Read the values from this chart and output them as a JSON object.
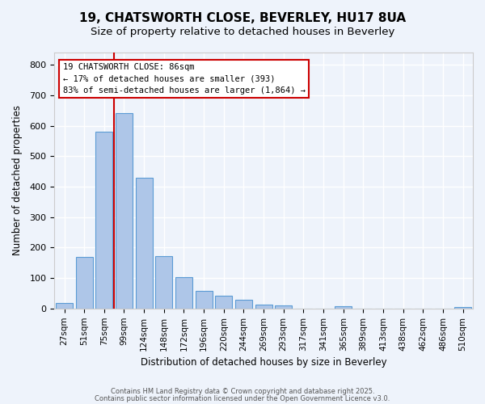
{
  "title": "19, CHATSWORTH CLOSE, BEVERLEY, HU17 8UA",
  "subtitle": "Size of property relative to detached houses in Beverley",
  "xlabel": "Distribution of detached houses by size in Beverley",
  "ylabel": "Number of detached properties",
  "bar_color": "#aec6e8",
  "bar_edge_color": "#5b9bd5",
  "bg_color": "#eef3fb",
  "fig_color": "#eef3fb",
  "grid_color": "#ffffff",
  "categories": [
    "27sqm",
    "51sqm",
    "75sqm",
    "99sqm",
    "124sqm",
    "148sqm",
    "172sqm",
    "196sqm",
    "220sqm",
    "244sqm",
    "269sqm",
    "293sqm",
    "317sqm",
    "341sqm",
    "365sqm",
    "389sqm",
    "413sqm",
    "438sqm",
    "462sqm",
    "486sqm",
    "510sqm"
  ],
  "values": [
    18,
    168,
    580,
    642,
    430,
    172,
    103,
    57,
    42,
    30,
    14,
    10,
    0,
    0,
    8,
    0,
    0,
    0,
    0,
    0,
    6
  ],
  "ylim": [
    0,
    840
  ],
  "yticks": [
    0,
    100,
    200,
    300,
    400,
    500,
    600,
    700,
    800
  ],
  "annotation_title": "19 CHATSWORTH CLOSE: 86sqm",
  "annotation_line1": "← 17% of detached houses are smaller (393)",
  "annotation_line2": "83% of semi-detached houses are larger (1,864) →",
  "annotation_color": "#cc0000",
  "vline_x": 2.5,
  "footer1": "Contains HM Land Registry data © Crown copyright and database right 2025.",
  "footer2": "Contains public sector information licensed under the Open Government Licence v3.0."
}
